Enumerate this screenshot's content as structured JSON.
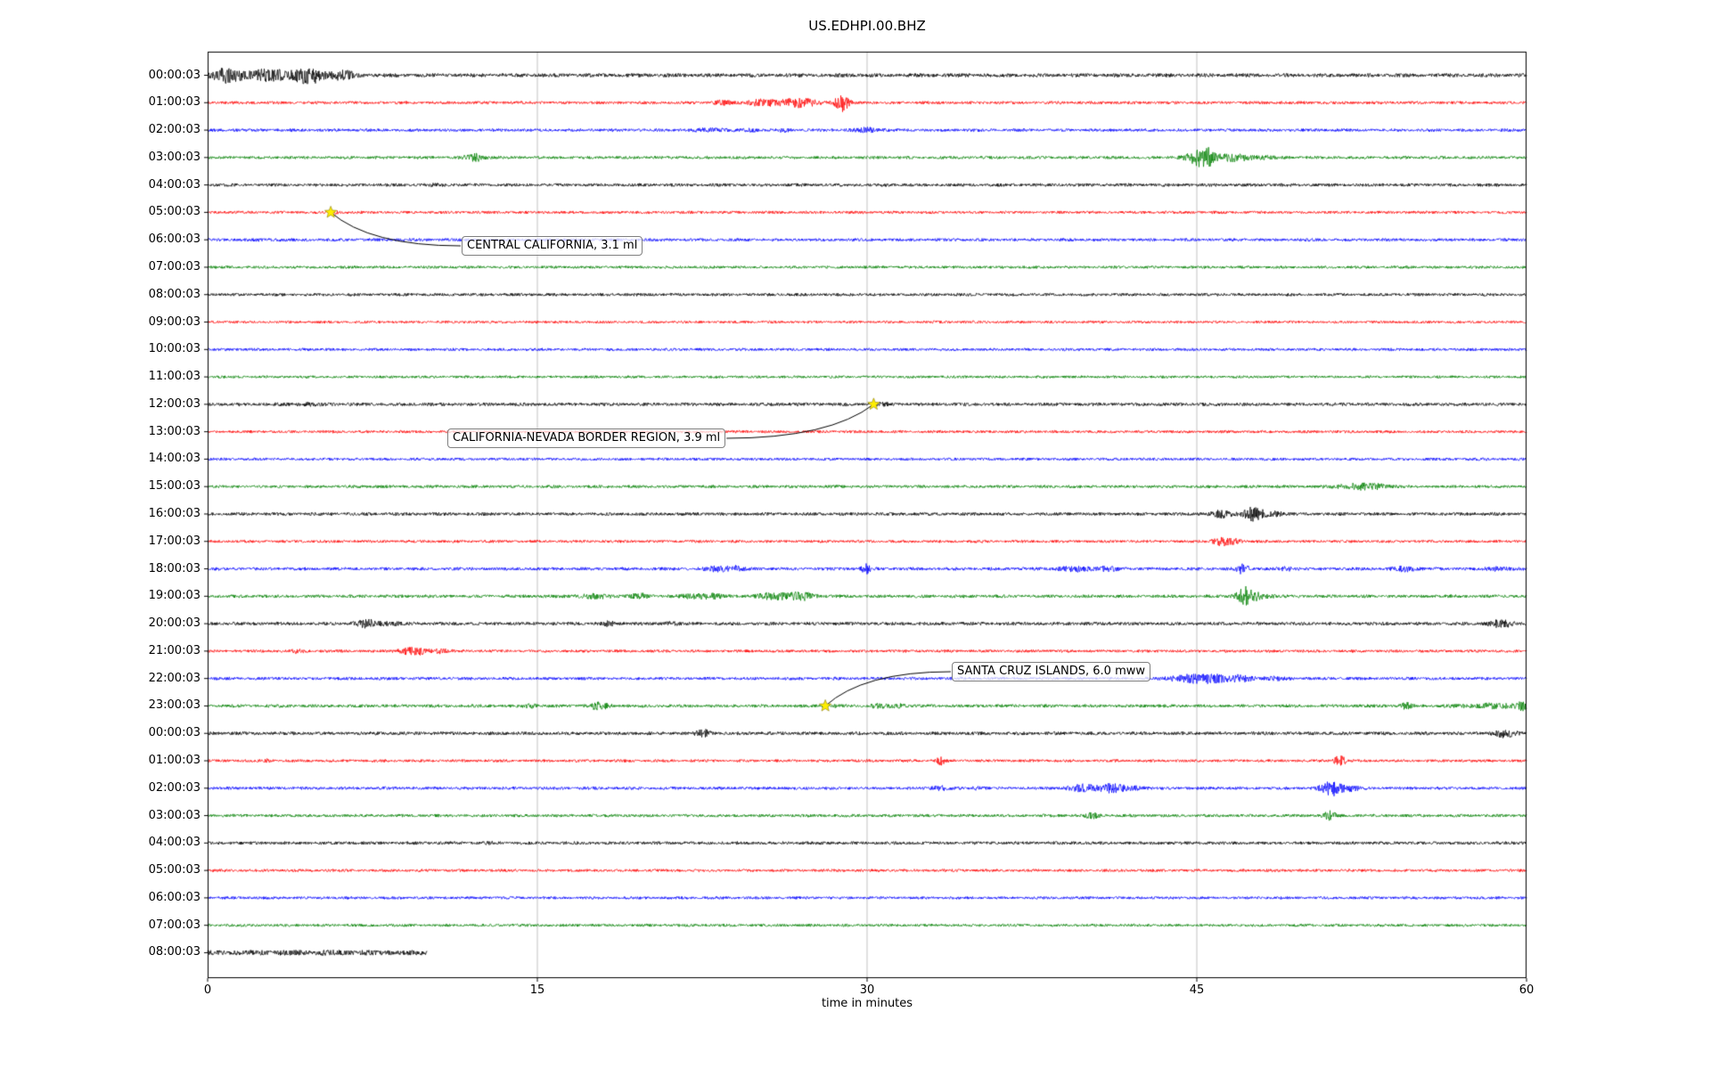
{
  "chart_data": {
    "type": "helicorder",
    "title": "US.EDHPI.00.BHZ",
    "xlabel": "time in minutes",
    "xlim": [
      0,
      60
    ],
    "x_ticks": [
      0,
      15,
      30,
      45,
      60
    ],
    "grid_x": [
      15,
      30,
      45
    ],
    "legend": "none",
    "trace_colors": {
      "black": "#000000",
      "red": "#ff0000",
      "blue": "#0000ff",
      "green": "#008000"
    },
    "color_cycle": [
      "black",
      "red",
      "blue",
      "green"
    ],
    "star_color": "#ffee00",
    "rows": [
      {
        "label": "00:00:03",
        "color": "black",
        "amp": 1.9,
        "end_min": 60,
        "bursts": [
          [
            0.2,
            1.2,
            4
          ],
          [
            1.5,
            2.5,
            3.5
          ],
          [
            4.0,
            1.5,
            4.5
          ],
          [
            5.8,
            0.8,
            3
          ]
        ]
      },
      {
        "label": "01:00:03",
        "color": "red",
        "amp": 1.5,
        "end_min": 60,
        "bursts": [
          [
            23.0,
            0.8,
            2
          ],
          [
            24.5,
            1.0,
            2.5
          ],
          [
            25.8,
            1.8,
            4
          ],
          [
            28.6,
            0.5,
            7
          ]
        ]
      },
      {
        "label": "02:00:03",
        "color": "blue",
        "amp": 1.5,
        "end_min": 60,
        "bursts": [
          [
            22.3,
            1.2,
            2.2
          ],
          [
            24.5,
            0.5,
            2
          ],
          [
            26.0,
            0.5,
            1.8
          ],
          [
            29.5,
            1.2,
            2.2
          ]
        ]
      },
      {
        "label": "03:00:03",
        "color": "green",
        "amp": 1.5,
        "end_min": 60,
        "bursts": [
          [
            11.8,
            0.8,
            3.5
          ],
          [
            44.3,
            0.8,
            3
          ],
          [
            45.0,
            0.8,
            8
          ],
          [
            45.9,
            1.5,
            3
          ],
          [
            47.5,
            1.0,
            1.8
          ]
        ]
      },
      {
        "label": "04:00:03",
        "color": "black",
        "amp": 1.6,
        "end_min": 60,
        "bursts": [
          [
            10.0,
            1.0,
            1.3
          ]
        ]
      },
      {
        "label": "05:00:03",
        "color": "red",
        "amp": 1.4,
        "end_min": 60,
        "bursts": [
          [
            5.6,
            0.6,
            1.8
          ]
        ]
      },
      {
        "label": "06:00:03",
        "color": "blue",
        "amp": 1.5,
        "end_min": 60,
        "bursts": [
          [
            2.0,
            2.0,
            1.4
          ]
        ]
      },
      {
        "label": "07:00:03",
        "color": "green",
        "amp": 1.4,
        "end_min": 60,
        "bursts": []
      },
      {
        "label": "08:00:03",
        "color": "black",
        "amp": 1.5,
        "end_min": 60,
        "bursts": []
      },
      {
        "label": "09:00:03",
        "color": "red",
        "amp": 1.3,
        "end_min": 60,
        "bursts": []
      },
      {
        "label": "10:00:03",
        "color": "blue",
        "amp": 1.4,
        "end_min": 60,
        "bursts": []
      },
      {
        "label": "11:00:03",
        "color": "green",
        "amp": 1.3,
        "end_min": 60,
        "bursts": []
      },
      {
        "label": "12:00:03",
        "color": "black",
        "amp": 1.7,
        "end_min": 60,
        "bursts": [
          [
            3.5,
            2.0,
            1.4
          ],
          [
            30.4,
            0.6,
            1.5
          ]
        ]
      },
      {
        "label": "13:00:03",
        "color": "red",
        "amp": 1.4,
        "end_min": 60,
        "bursts": []
      },
      {
        "label": "14:00:03",
        "color": "blue",
        "amp": 1.4,
        "end_min": 60,
        "bursts": []
      },
      {
        "label": "15:00:03",
        "color": "green",
        "amp": 1.5,
        "end_min": 60,
        "bursts": [
          [
            51.5,
            1.6,
            2.8
          ],
          [
            53.0,
            0.7,
            2
          ]
        ]
      },
      {
        "label": "16:00:03",
        "color": "black",
        "amp": 1.6,
        "end_min": 60,
        "bursts": [
          [
            45.8,
            0.8,
            3
          ],
          [
            47.2,
            0.8,
            5
          ],
          [
            48.3,
            0.6,
            2.5
          ]
        ]
      },
      {
        "label": "17:00:03",
        "color": "red",
        "amp": 1.4,
        "end_min": 60,
        "bursts": [
          [
            45.7,
            0.9,
            3.5
          ],
          [
            46.6,
            0.4,
            2
          ]
        ]
      },
      {
        "label": "18:00:03",
        "color": "blue",
        "amp": 1.6,
        "end_min": 60,
        "bursts": [
          [
            22.8,
            1.2,
            2.5
          ],
          [
            23.8,
            0.5,
            2
          ],
          [
            29.8,
            0.3,
            4.5
          ],
          [
            38.8,
            1.5,
            2.2
          ],
          [
            40.5,
            0.8,
            2
          ],
          [
            46.9,
            0.4,
            4
          ],
          [
            48.8,
            0.8,
            1.8
          ],
          [
            54.0,
            1.0,
            2.2
          ],
          [
            58.3,
            0.8,
            2
          ]
        ]
      },
      {
        "label": "19:00:03",
        "color": "green",
        "amp": 1.6,
        "end_min": 60,
        "bursts": [
          [
            16.8,
            1.5,
            2
          ],
          [
            19.3,
            0.8,
            2.2
          ],
          [
            21.8,
            1.5,
            2.5
          ],
          [
            25.3,
            1.5,
            3.5
          ],
          [
            26.8,
            0.8,
            2.5
          ],
          [
            46.9,
            0.8,
            6.5
          ],
          [
            48.0,
            0.5,
            2
          ]
        ]
      },
      {
        "label": "20:00:03",
        "color": "black",
        "amp": 1.7,
        "end_min": 60,
        "bursts": [
          [
            6.8,
            1.0,
            2.8
          ],
          [
            8.0,
            0.6,
            2
          ],
          [
            18.1,
            0.4,
            2.4
          ],
          [
            20.8,
            0.5,
            2
          ],
          [
            58.3,
            1.0,
            2.8
          ]
        ]
      },
      {
        "label": "21:00:03",
        "color": "red",
        "amp": 1.4,
        "end_min": 60,
        "bursts": [
          [
            3.8,
            0.5,
            2
          ],
          [
            8.8,
            1.2,
            3.5
          ],
          [
            10.3,
            0.6,
            2.5
          ]
        ]
      },
      {
        "label": "22:00:03",
        "color": "blue",
        "amp": 1.5,
        "end_min": 60,
        "bursts": [
          [
            43.8,
            1.2,
            3
          ],
          [
            45.0,
            1.5,
            4
          ],
          [
            46.6,
            1.0,
            2.5
          ],
          [
            48.0,
            1.0,
            1.8
          ]
        ]
      },
      {
        "label": "23:00:03",
        "color": "green",
        "amp": 1.6,
        "end_min": 60,
        "bursts": [
          [
            14.5,
            0.5,
            2
          ],
          [
            17.4,
            0.8,
            2.8
          ],
          [
            28.1,
            0.4,
            1.8
          ],
          [
            30.3,
            0.6,
            2.5
          ],
          [
            31.2,
            0.5,
            2
          ],
          [
            54.3,
            0.4,
            2.8
          ],
          [
            57.5,
            2.5,
            2.2
          ],
          [
            59.5,
            0.5,
            3
          ]
        ]
      },
      {
        "label": "00:00:03",
        "color": "black",
        "amp": 1.7,
        "end_min": 60,
        "bursts": [
          [
            22.3,
            0.5,
            3.5
          ],
          [
            58.6,
            0.9,
            2.8
          ]
        ]
      },
      {
        "label": "01:00:03",
        "color": "red",
        "amp": 1.4,
        "end_min": 60,
        "bursts": [
          [
            2.5,
            0.4,
            1.8
          ],
          [
            33.2,
            0.3,
            3.5
          ],
          [
            51.3,
            0.4,
            5.5
          ]
        ]
      },
      {
        "label": "02:00:03",
        "color": "blue",
        "amp": 1.5,
        "end_min": 60,
        "bursts": [
          [
            33.0,
            0.6,
            2.5
          ],
          [
            34.8,
            0.5,
            2
          ],
          [
            39.3,
            1.2,
            3
          ],
          [
            40.5,
            1.2,
            3.5
          ],
          [
            42.0,
            0.6,
            2
          ],
          [
            50.8,
            0.9,
            6
          ],
          [
            51.8,
            0.5,
            2.5
          ]
        ]
      },
      {
        "label": "03:00:03",
        "color": "green",
        "amp": 1.5,
        "end_min": 60,
        "bursts": [
          [
            40.0,
            0.5,
            2.5
          ],
          [
            50.8,
            0.5,
            3.5
          ]
        ]
      },
      {
        "label": "04:00:03",
        "color": "black",
        "amp": 1.6,
        "end_min": 60,
        "bursts": [
          [
            12.5,
            0.5,
            1.5
          ]
        ]
      },
      {
        "label": "05:00:03",
        "color": "red",
        "amp": 1.4,
        "end_min": 60,
        "bursts": []
      },
      {
        "label": "06:00:03",
        "color": "blue",
        "amp": 1.4,
        "end_min": 60,
        "bursts": []
      },
      {
        "label": "07:00:03",
        "color": "green",
        "amp": 1.4,
        "end_min": 60,
        "bursts": []
      },
      {
        "label": "08:00:03",
        "color": "black",
        "amp": 2.2,
        "end_min": 10,
        "bursts": [
          [
            0.5,
            9.0,
            1.3
          ]
        ]
      }
    ],
    "events": [
      {
        "label": "CENTRAL CALIFORNIA, 3.1 ml",
        "row": 5,
        "x_min": 5.6
      },
      {
        "label": "CALIFORNIA-NEVADA BORDER REGION, 3.9 ml",
        "row": 12,
        "x_min": 30.3
      },
      {
        "label": "SANTA CRUZ ISLANDS, 6.0 mww",
        "row": 23,
        "x_min": 28.1
      }
    ]
  }
}
